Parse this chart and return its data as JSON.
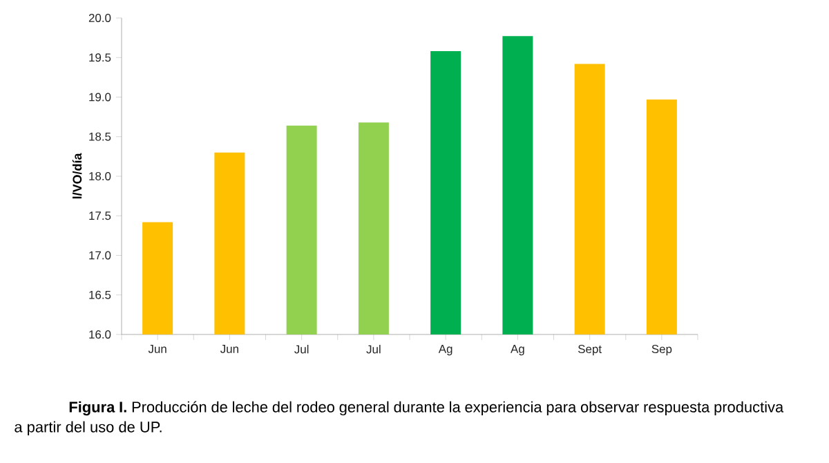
{
  "chart_data": {
    "type": "bar",
    "ylabel": "l/VO/día",
    "categories": [
      "Jun",
      "Jun",
      "Jul",
      "Jul",
      "Ag",
      "Ag",
      "Sept",
      "Sep"
    ],
    "values": [
      17.42,
      18.3,
      18.64,
      18.68,
      19.58,
      19.77,
      19.42,
      18.97
    ],
    "colors": [
      "#ffc000",
      "#ffc000",
      "#92d050",
      "#92d050",
      "#00b050",
      "#00b050",
      "#ffc000",
      "#ffc000"
    ],
    "ylim": [
      16.0,
      20.0
    ],
    "yticks": [
      {
        "value": 16.0,
        "label": "16.0"
      },
      {
        "value": 16.5,
        "label": "16.5"
      },
      {
        "value": 17.0,
        "label": "17.0"
      },
      {
        "value": 17.5,
        "label": "17.5"
      },
      {
        "value": 18.0,
        "label": "18.0"
      },
      {
        "value": 18.5,
        "label": "18.5"
      },
      {
        "value": 19.0,
        "label": "19.0"
      },
      {
        "value": 19.5,
        "label": "19.5"
      },
      {
        "value": 20.0,
        "label": "20.0"
      }
    ],
    "grid": false,
    "annotations": [
      "**Figura I.** Producción de leche del rodeo general durante la experiencia para observar respuesta productiva a partir del uso de UP."
    ]
  }
}
